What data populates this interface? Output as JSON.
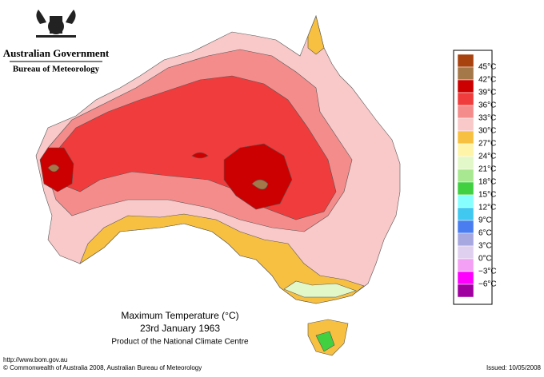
{
  "header": {
    "title": "Australian Government",
    "subtitle": "Bureau of Meteorology"
  },
  "map": {
    "title": "Maximum Temperature (°C)",
    "date": "23rd January 1963",
    "credit": "Product of the National Climate Centre"
  },
  "legend": {
    "colors": [
      "#a8420f",
      "#a47848",
      "#cc0000",
      "#f03c3c",
      "#f58c8c",
      "#f9c8c8",
      "#f8c040",
      "#fff4a8",
      "#e2f8c8",
      "#a8e890",
      "#40d040",
      "#88ffff",
      "#40c8f0",
      "#4a7ef0",
      "#a8a8e0",
      "#e0d0f0",
      "#f4a0f4",
      "#ff00ff",
      "#a000a0"
    ],
    "labels": [
      "45°C",
      "42°C",
      "39°C",
      "36°C",
      "33°C",
      "30°C",
      "27°C",
      "24°C",
      "21°C",
      "18°C",
      "15°C",
      "12°C",
      "9°C",
      "6°C",
      "3°C",
      "0°C",
      "−3°C",
      "−6°C"
    ]
  },
  "footer": {
    "url": "http://www.bom.gov.au",
    "copyright": "© Commonwealth of Australia 2008, Australian Bureau of Meteorology",
    "issued": "Issued: 10/05/2008"
  }
}
